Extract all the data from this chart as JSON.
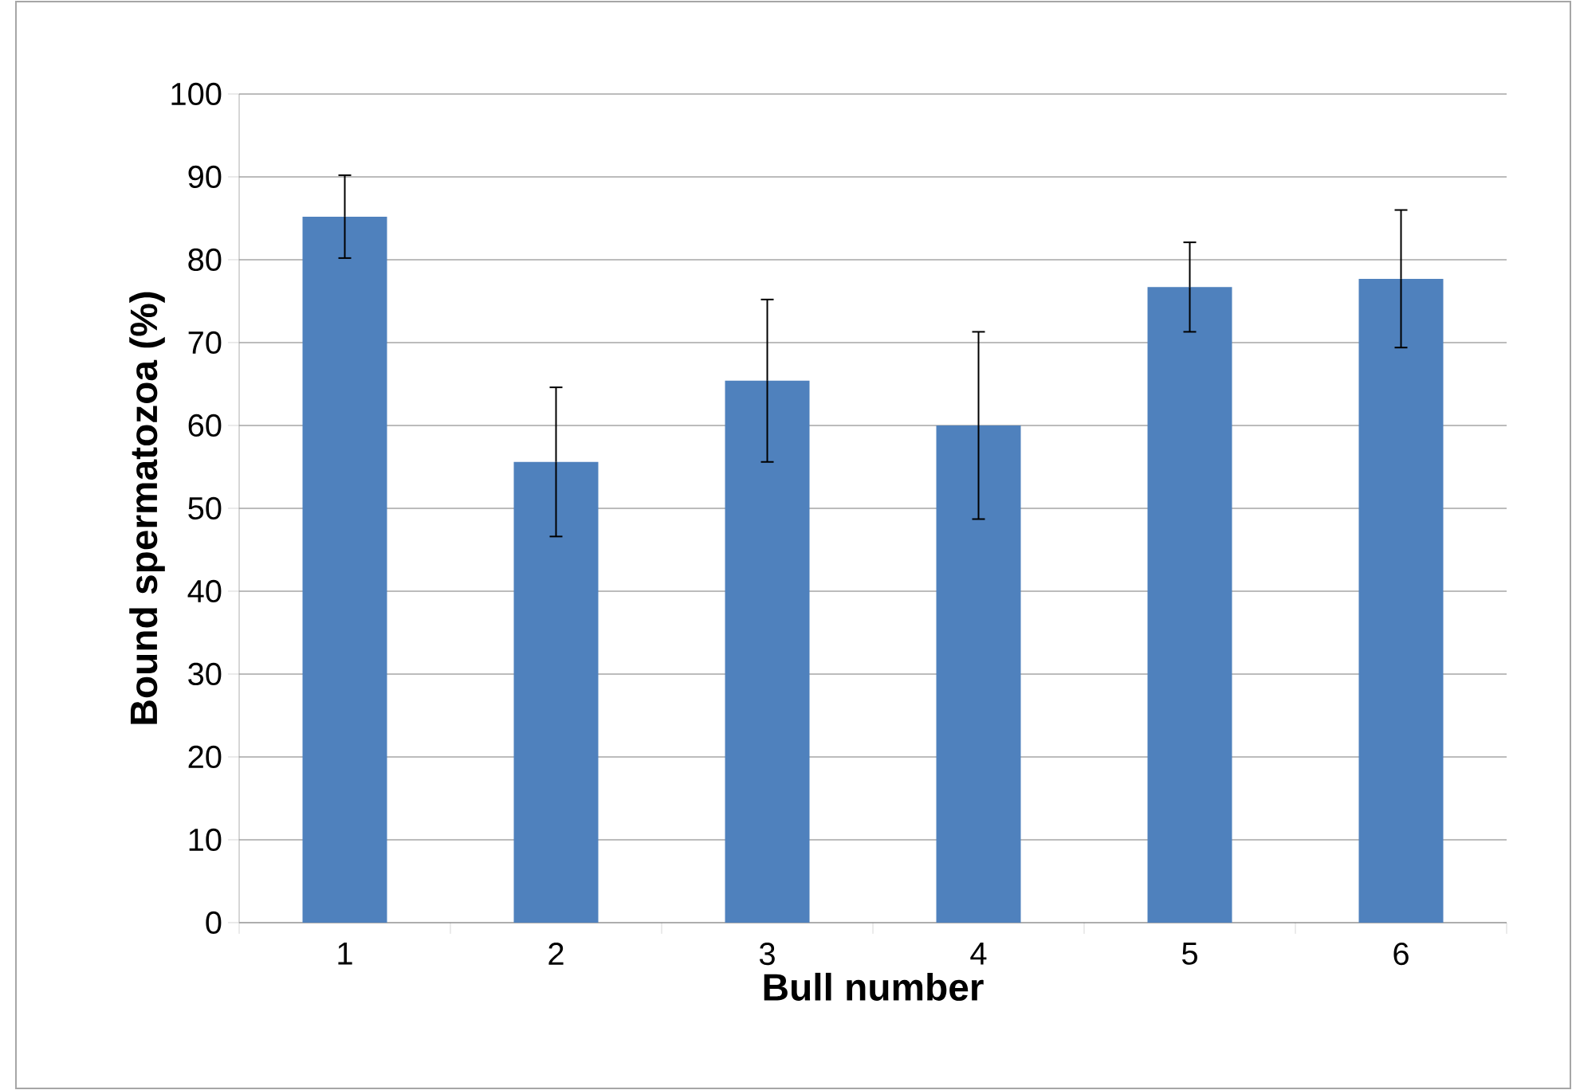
{
  "chart_data": {
    "type": "bar",
    "xlabel": "Bull number",
    "ylabel": "Bound spermatozoa (%)",
    "categories": [
      "1",
      "2",
      "3",
      "4",
      "5",
      "6"
    ],
    "values": [
      85.2,
      55.6,
      65.4,
      60.0,
      76.7,
      77.7
    ],
    "errors": [
      5.0,
      9.0,
      9.8,
      11.3,
      5.4,
      8.3
    ],
    "color": "#4f81bd",
    "ylim": [
      0,
      100
    ],
    "yticks": [
      0,
      10,
      20,
      30,
      40,
      50,
      60,
      70,
      80,
      90,
      100
    ],
    "grid": "y"
  }
}
